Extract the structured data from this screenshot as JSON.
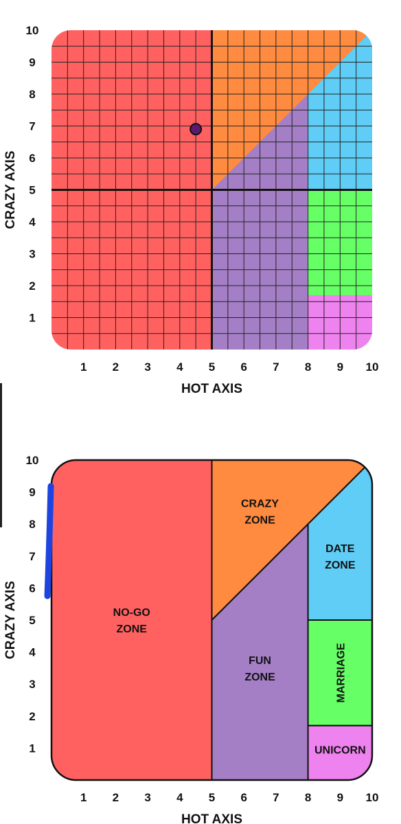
{
  "charts": [
    {
      "type": "scatter",
      "xlabel": "HOT AXIS",
      "ylabel": "CRAZY AXIS",
      "xlim": [
        0,
        10
      ],
      "ylim": [
        0,
        10
      ],
      "x_ticks": [
        "1",
        "2",
        "3",
        "4",
        "5",
        "6",
        "7",
        "8",
        "9",
        "10"
      ],
      "y_ticks": [
        "1",
        "2",
        "3",
        "4",
        "5",
        "6",
        "7",
        "8",
        "9",
        "10"
      ],
      "grid": true,
      "point": {
        "x": 4.5,
        "y": 6.9,
        "color": "#5b1a6e"
      }
    },
    {
      "type": "area",
      "xlabel": "HOT AXIS",
      "ylabel": "CRAZY AXIS",
      "xlim": [
        0,
        10
      ],
      "ylim": [
        0,
        10
      ],
      "x_ticks": [
        "1",
        "2",
        "3",
        "4",
        "5",
        "6",
        "7",
        "8",
        "9",
        "10"
      ],
      "y_ticks": [
        "1",
        "2",
        "3",
        "4",
        "5",
        "6",
        "7",
        "8",
        "9",
        "10"
      ],
      "grid": false,
      "zones": [
        {
          "key": "no-go",
          "lines": [
            "NO-GO",
            "ZONE"
          ],
          "color": "#ff6160",
          "label_x": 2.5,
          "label_y": 5.0,
          "rotate": 0
        },
        {
          "key": "crazy",
          "lines": [
            "CRAZY",
            "ZONE"
          ],
          "color": "#ff8b40",
          "label_x": 6.5,
          "label_y": 8.4,
          "rotate": 0
        },
        {
          "key": "fun",
          "lines": [
            "FUN",
            "ZONE"
          ],
          "color": "#a47fc6",
          "label_x": 6.5,
          "label_y": 3.5,
          "rotate": 0
        },
        {
          "key": "date",
          "lines": [
            "DATE",
            "ZONE"
          ],
          "color": "#5fcdf5",
          "label_x": 9.0,
          "label_y": 7.0,
          "rotate": 0
        },
        {
          "key": "marriage",
          "lines": [
            "MARRIAGE"
          ],
          "color": "#66ff66",
          "label_x": 9.0,
          "label_y": 3.35,
          "rotate": -90
        },
        {
          "key": "unicorn",
          "lines": [
            "UNICORN"
          ],
          "color": "#ee82ee",
          "label_x": 9.0,
          "label_y": 0.95,
          "rotate": 0
        }
      ]
    }
  ],
  "colors": {
    "no_go": "#ff6160",
    "crazy": "#ff8b40",
    "fun": "#a47fc6",
    "date": "#5fcdf5",
    "marriage": "#66ff66",
    "unicorn": "#ee82ee",
    "annotation_stroke": "#1d44e0"
  }
}
